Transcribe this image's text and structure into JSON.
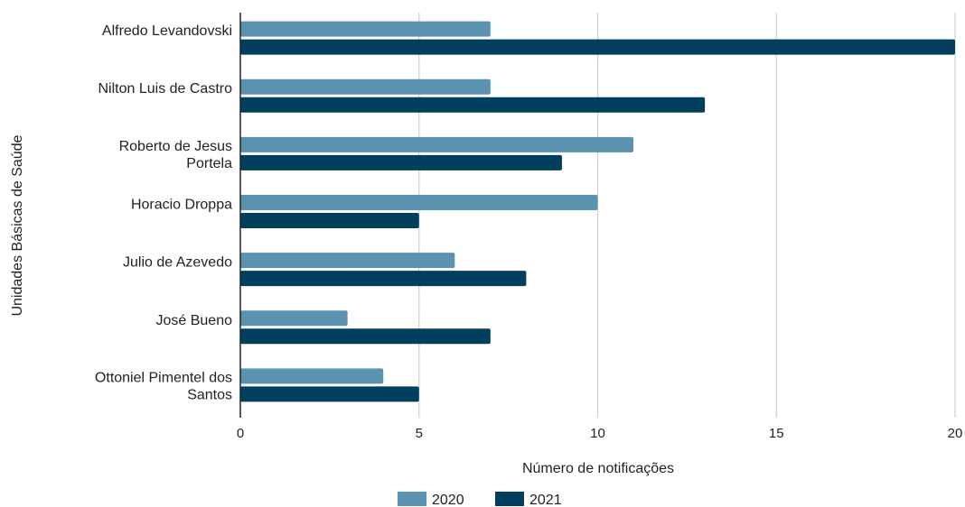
{
  "chart_data": {
    "type": "bar",
    "orientation": "horizontal",
    "categories": [
      [
        "Alfredo Levandovski"
      ],
      [
        "Nilton Luis de Castro"
      ],
      [
        "Roberto de Jesus",
        "Portela"
      ],
      [
        "Horacio Droppa"
      ],
      [
        "Julio de Azevedo"
      ],
      [
        "José Bueno"
      ],
      [
        "Ottoniel Pimentel dos",
        "Santos"
      ]
    ],
    "series": [
      {
        "name": "2020",
        "color": "#5b92b0",
        "values": [
          7,
          7,
          11,
          10,
          6,
          3,
          4
        ]
      },
      {
        "name": "2021",
        "color": "#023f5e",
        "values": [
          20,
          13,
          9,
          5,
          8,
          7,
          5
        ]
      }
    ],
    "xlabel": "Número de notificações",
    "ylabel": "Unidades Básicas de Saúde",
    "xlim": [
      0,
      20
    ],
    "xticks": [
      0,
      5,
      10,
      15,
      20
    ],
    "grid": "vertical",
    "legend": "bottom"
  }
}
